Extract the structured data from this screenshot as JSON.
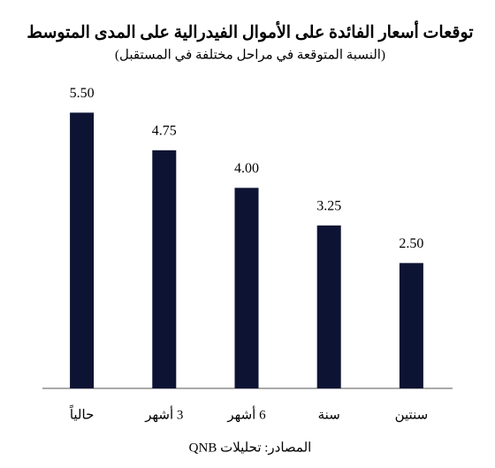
{
  "chart_data": {
    "type": "bar",
    "title": "توقعات أسعار الفائدة على الأموال الفيدرالية على المدى المتوسط",
    "subtitle": "(النسبة المتوقعة في مراحل مختلفة في المستقبل)",
    "categories": [
      "حالياً",
      "3 أشهر",
      "6 أشهر",
      "سنة",
      "سنتين"
    ],
    "values": [
      5.5,
      4.75,
      4.0,
      3.25,
      2.5
    ],
    "value_labels": [
      "5.50",
      "4.75",
      "4.00",
      "3.25",
      "2.50"
    ],
    "color": "#0d1333",
    "ylim": [
      0,
      6
    ],
    "source": "المصادر: تحليلات QNB"
  }
}
